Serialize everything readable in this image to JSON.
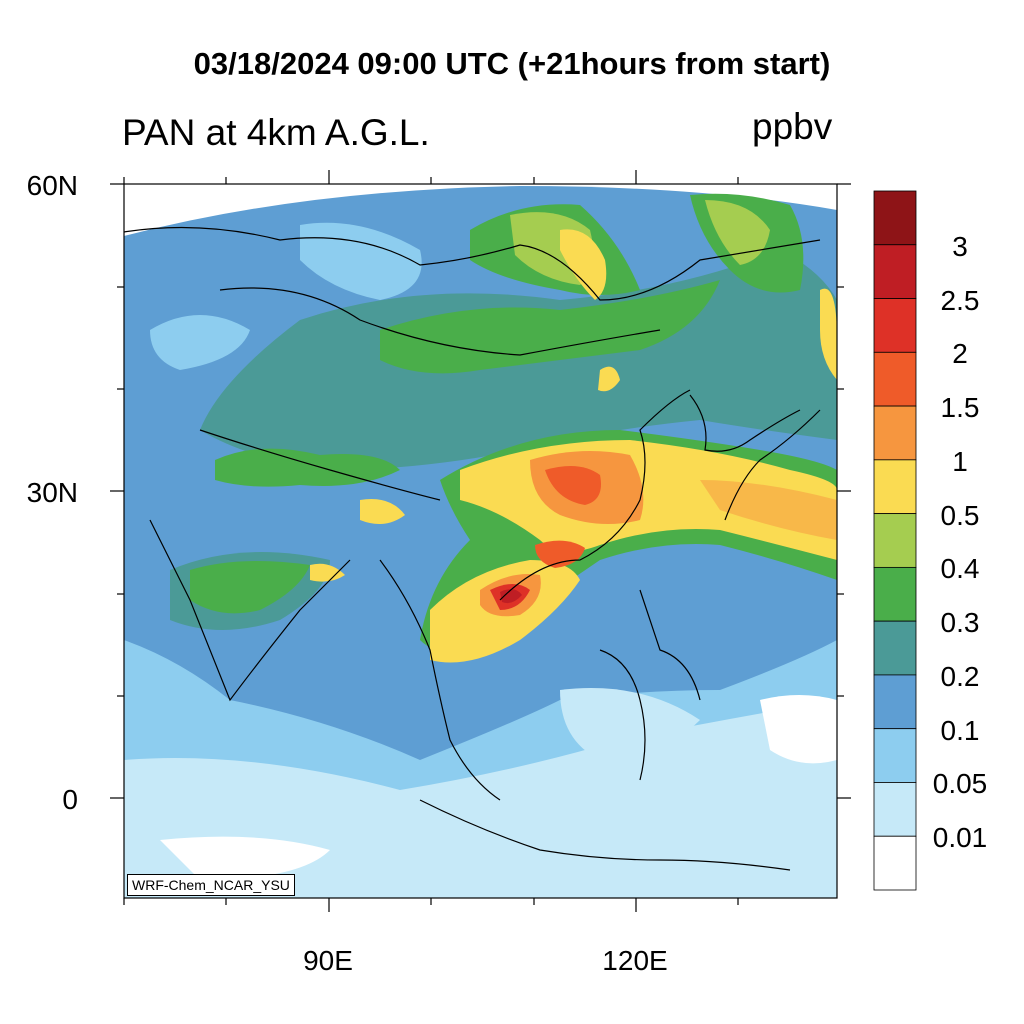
{
  "title": "03/18/2024 09:00 UTC (+21hours from start)",
  "subtitle": "PAN at 4km A.G.L.",
  "units": "ppbv",
  "credit": "WRF-Chem_NCAR_YSU",
  "lat_labels": [
    "60N",
    "30N",
    "0"
  ],
  "lon_labels": [
    "90E",
    "120E"
  ],
  "colorbar": {
    "labels": [
      "3",
      "2.5",
      "2",
      "1.5",
      "1",
      "0.5",
      "0.4",
      "0.3",
      "0.2",
      "0.1",
      "0.05",
      "0.01"
    ],
    "colors": [
      "#8e1417",
      "#bf1e24",
      "#de3127",
      "#ef5b29",
      "#f6963f",
      "#fadb52",
      "#a5cd50",
      "#4aae4a",
      "#4b9a97",
      "#5e9ed3",
      "#8dcdef",
      "#c6e9f8",
      "#ffffff"
    ]
  },
  "legend_type": "filled contour colorbar, right side",
  "map_extent": {
    "lon": [
      70,
      140
    ],
    "lat": [
      -10,
      60
    ]
  }
}
